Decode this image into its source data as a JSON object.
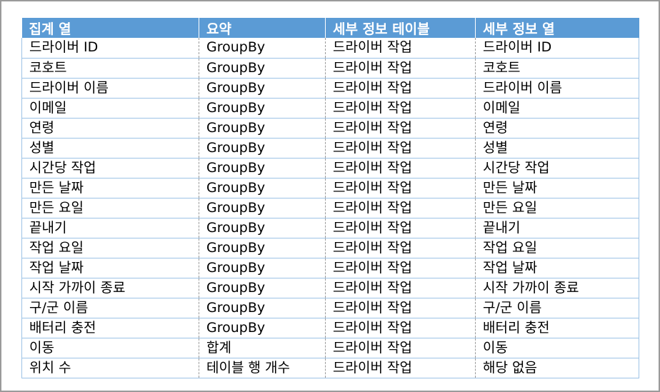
{
  "table": {
    "headers": [
      "집계 열",
      "요약",
      "세부 정보 테이블",
      "세부 정보 열"
    ],
    "rows": [
      [
        "드라이버 ID",
        "GroupBy",
        "드라이버 작업",
        "드라이버 ID"
      ],
      [
        "코호트",
        "GroupBy",
        "드라이버 작업",
        "코호트"
      ],
      [
        "드라이버 이름",
        "GroupBy",
        "드라이버 작업",
        "드라이버 이름"
      ],
      [
        "이메일",
        "GroupBy",
        "드라이버 작업",
        "이메일"
      ],
      [
        "연령",
        "GroupBy",
        "드라이버 작업",
        "연령"
      ],
      [
        "성별",
        "GroupBy",
        "드라이버 작업",
        "성별"
      ],
      [
        "시간당 작업",
        "GroupBy",
        "드라이버 작업",
        "시간당 작업"
      ],
      [
        "만든 날짜",
        "GroupBy",
        "드라이버 작업",
        "만든 날짜"
      ],
      [
        "만든 요일",
        "GroupBy",
        "드라이버 작업",
        "만든 요일"
      ],
      [
        "끝내기",
        "GroupBy",
        "드라이버 작업",
        "끝내기"
      ],
      [
        "작업 요일",
        "GroupBy",
        "드라이버 작업",
        "작업 요일"
      ],
      [
        "작업 날짜",
        "GroupBy",
        "드라이버 작업",
        "작업 날짜"
      ],
      [
        "시작 가까이 종료",
        "GroupBy",
        "드라이버 작업",
        "시작 가까이 종료"
      ],
      [
        "구/군 이름",
        "GroupBy",
        "드라이버 작업",
        "구/군 이름"
      ],
      [
        "배터리 충전",
        "GroupBy",
        "드라이버 작업",
        "배터리 충전"
      ],
      [
        "이동",
        "합계",
        "드라이버 작업",
        "이동"
      ],
      [
        "위치 수",
        "테이블 행 개수",
        "드라이버 작업",
        "해당 없음"
      ]
    ]
  },
  "colors": {
    "header_bg": "#5b9bd5",
    "header_text": "#ffffff",
    "row_border": "#9dc3e6",
    "frame_border": "#9a9a9a"
  }
}
